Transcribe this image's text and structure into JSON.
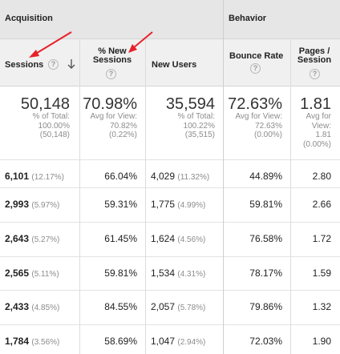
{
  "groups": {
    "acquisition": "Acquisition",
    "behavior": "Behavior"
  },
  "columns": {
    "sessions": "Sessions",
    "new_sessions_line1": "% New",
    "new_sessions_line2": "Sessions",
    "new_users": "New Users",
    "bounce_rate": "Bounce Rate",
    "pages_line1": "Pages /",
    "pages_line2": "Session",
    "help_glyph": "?"
  },
  "summary": {
    "sessions": {
      "value": "50,148",
      "l1": "% of Total:",
      "l2": "100.00%",
      "l3": "(50,148)"
    },
    "new_sessions": {
      "value": "70.98%",
      "l1": "Avg for View:",
      "l2": "70.82%",
      "l3": "(0.22%)"
    },
    "new_users": {
      "value": "35,594",
      "l1": "% of Total:",
      "l2": "100.22%",
      "l3": "(35,515)"
    },
    "bounce_rate": {
      "value": "72.63%",
      "l1": "Avg for View:",
      "l2": "72.63%",
      "l3": "(0.00%)"
    },
    "pages": {
      "value": "1.81",
      "l1": "Avg for",
      "l2": "View:",
      "l3": "1.81",
      "l4": "(0.00%)"
    }
  },
  "rows": [
    {
      "sessions": "6,101",
      "sessions_pct": "(12.17%)",
      "new_sessions": "66.04%",
      "new_users": "4,029",
      "new_users_pct": "(11.32%)",
      "bounce_rate": "44.89%",
      "pages": "2.80"
    },
    {
      "sessions": "2,993",
      "sessions_pct": "(5.97%)",
      "new_sessions": "59.31%",
      "new_users": "1,775",
      "new_users_pct": "(4.99%)",
      "bounce_rate": "59.81%",
      "pages": "2.66"
    },
    {
      "sessions": "2,643",
      "sessions_pct": "(5.27%)",
      "new_sessions": "61.45%",
      "new_users": "1,624",
      "new_users_pct": "(4.56%)",
      "bounce_rate": "76.58%",
      "pages": "1.72"
    },
    {
      "sessions": "2,565",
      "sessions_pct": "(5.11%)",
      "new_sessions": "59.81%",
      "new_users": "1,534",
      "new_users_pct": "(4.31%)",
      "bounce_rate": "78.17%",
      "pages": "1.59"
    },
    {
      "sessions": "2,433",
      "sessions_pct": "(4.85%)",
      "new_sessions": "84.55%",
      "new_users": "2,057",
      "new_users_pct": "(5.78%)",
      "bounce_rate": "79.86%",
      "pages": "1.32"
    },
    {
      "sessions": "1,784",
      "sessions_pct": "(3.56%)",
      "new_sessions": "58.69%",
      "new_users": "1,047",
      "new_users_pct": "(2.94%)",
      "bounce_rate": "72.03%",
      "pages": "1.90"
    }
  ],
  "colors": {
    "annotation_arrow": "#e8202a",
    "header_bg": "#f0f0f0",
    "group_bg": "#e6e6e6"
  },
  "icons": {
    "sort": "arrow-down-icon",
    "help": "question-mark-icon",
    "annotation": "red-arrow"
  }
}
